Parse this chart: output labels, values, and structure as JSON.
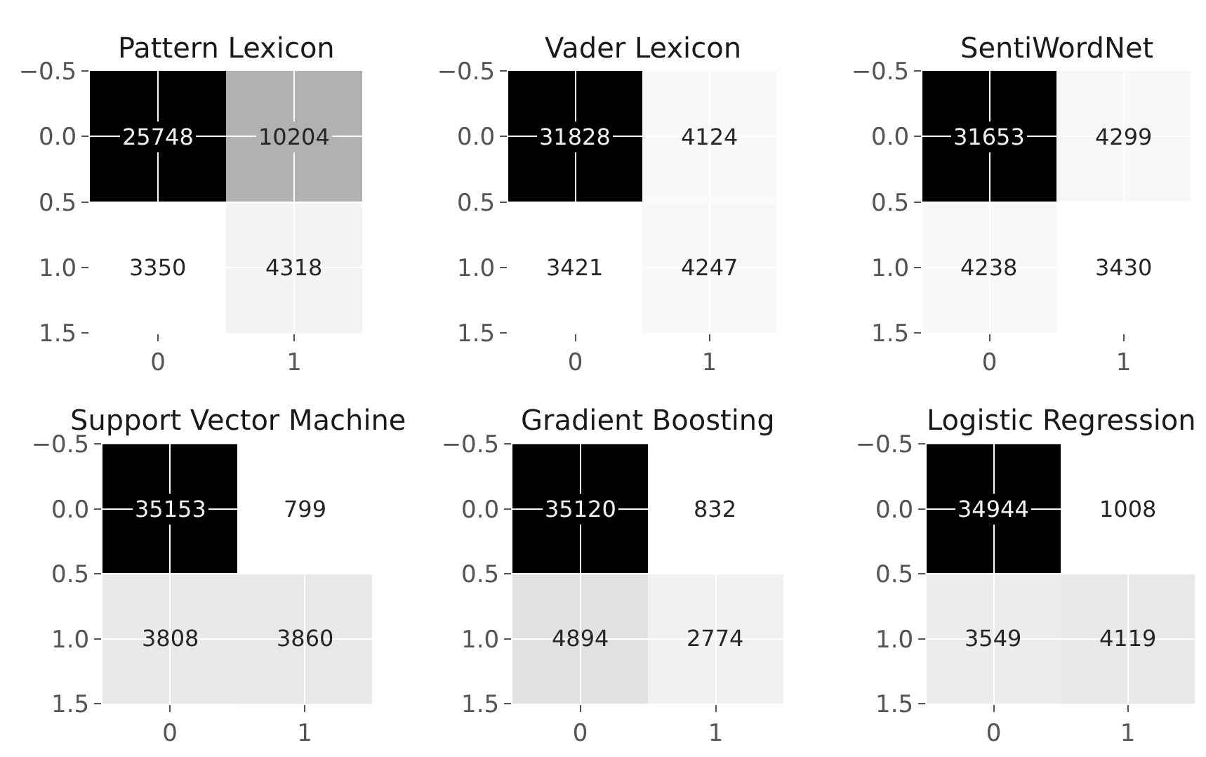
{
  "chart_data": [
    {
      "type": "heatmap",
      "title": "Pattern Lexicon",
      "cells": [
        [
          25748,
          10204
        ],
        [
          3350,
          4318
        ]
      ],
      "data_labels": true,
      "xlim": [
        -0.5,
        1.5
      ],
      "xticks": [
        0,
        1
      ],
      "ylim": [
        1.5,
        -0.5
      ],
      "yticks": [
        {
          "value": -0.5,
          "label": "−0.5"
        },
        {
          "value": 0,
          "label": "0.0"
        },
        {
          "value": 0.5,
          "label": "0.5"
        },
        {
          "value": 1,
          "label": "1.0"
        },
        {
          "value": 1.5,
          "label": "1.5"
        }
      ],
      "grid": true
    },
    {
      "type": "heatmap",
      "title": "Vader Lexicon",
      "cells": [
        [
          31828,
          4124
        ],
        [
          3421,
          4247
        ]
      ],
      "data_labels": true,
      "xlim": [
        -0.5,
        1.5
      ],
      "xticks": [
        0,
        1
      ],
      "ylim": [
        1.5,
        -0.5
      ],
      "yticks": [
        {
          "value": -0.5,
          "label": "−0.5"
        },
        {
          "value": 0,
          "label": "0.0"
        },
        {
          "value": 0.5,
          "label": "0.5"
        },
        {
          "value": 1,
          "label": "1.0"
        },
        {
          "value": 1.5,
          "label": "1.5"
        }
      ],
      "grid": true
    },
    {
      "type": "heatmap",
      "title": "SentiWordNet",
      "cells": [
        [
          31653,
          4299
        ],
        [
          4238,
          3430
        ]
      ],
      "data_labels": true,
      "xlim": [
        -0.5,
        1.5
      ],
      "xticks": [
        0,
        1
      ],
      "ylim": [
        1.5,
        -0.5
      ],
      "yticks": [
        {
          "value": -0.5,
          "label": "−0.5"
        },
        {
          "value": 0,
          "label": "0.0"
        },
        {
          "value": 0.5,
          "label": "0.5"
        },
        {
          "value": 1,
          "label": "1.0"
        },
        {
          "value": 1.5,
          "label": "1.5"
        }
      ],
      "grid": true
    },
    {
      "type": "heatmap",
      "title": "Support Vector Machine",
      "cells": [
        [
          35153,
          799
        ],
        [
          3808,
          3860
        ]
      ],
      "data_labels": true,
      "xlim": [
        -0.5,
        1.5
      ],
      "xticks": [
        0,
        1
      ],
      "ylim": [
        1.5,
        -0.5
      ],
      "yticks": [
        {
          "value": -0.5,
          "label": "−0.5"
        },
        {
          "value": 0,
          "label": "0.0"
        },
        {
          "value": 0.5,
          "label": "0.5"
        },
        {
          "value": 1,
          "label": "1.0"
        },
        {
          "value": 1.5,
          "label": "1.5"
        }
      ],
      "grid": true
    },
    {
      "type": "heatmap",
      "title": "Gradient Boosting",
      "cells": [
        [
          35120,
          832
        ],
        [
          4894,
          2774
        ]
      ],
      "data_labels": true,
      "xlim": [
        -0.5,
        1.5
      ],
      "xticks": [
        0,
        1
      ],
      "ylim": [
        1.5,
        -0.5
      ],
      "yticks": [
        {
          "value": -0.5,
          "label": "−0.5"
        },
        {
          "value": 0,
          "label": "0.0"
        },
        {
          "value": 0.5,
          "label": "0.5"
        },
        {
          "value": 1,
          "label": "1.0"
        },
        {
          "value": 1.5,
          "label": "1.5"
        }
      ],
      "grid": true
    },
    {
      "type": "heatmap",
      "title": "Logistic Regression",
      "cells": [
        [
          34944,
          1008
        ],
        [
          3549,
          4119
        ]
      ],
      "data_labels": true,
      "xlim": [
        -0.5,
        1.5
      ],
      "xticks": [
        0,
        1
      ],
      "ylim": [
        1.5,
        -0.5
      ],
      "yticks": [
        {
          "value": -0.5,
          "label": "−0.5"
        },
        {
          "value": 0,
          "label": "0.0"
        },
        {
          "value": 0.5,
          "label": "0.5"
        },
        {
          "value": 1,
          "label": "1.0"
        },
        {
          "value": 1.5,
          "label": "1.5"
        }
      ],
      "grid": true
    }
  ]
}
